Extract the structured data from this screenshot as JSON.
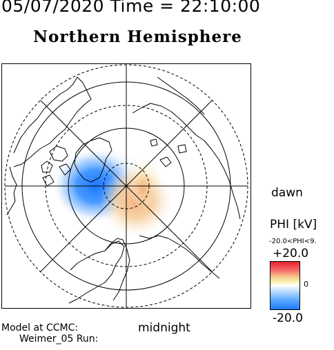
{
  "header": {
    "timestamp": "05/07/2020 Time = 22:10:00",
    "hemisphere": "Northern Hemisphere"
  },
  "map": {
    "local_time_labels": {
      "right": "dawn",
      "bottom": "midnight"
    },
    "coastline_color": "#000000"
  },
  "colorbar": {
    "title": "PHI [kV]",
    "range_note": "-20.0<PHI<9.",
    "max_label": "+20.0",
    "mid_label": "0",
    "min_label": "-20.0",
    "colors": {
      "positive": "#e8202a",
      "neutral": "#ffffff",
      "negative": "#1e78ff"
    }
  },
  "footer": {
    "model_line": "Model at CCMC:",
    "run_line": "Weimer_05 Run:"
  }
}
